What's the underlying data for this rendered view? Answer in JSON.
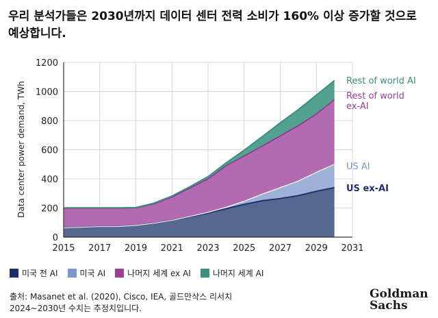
{
  "title": "우리 분석가들은 2030년까지 데이터 센터 전력 소비가 160% 이상 증가할 것으로 예상합니다.",
  "legend": [
    {
      "label": "미국 전 AI",
      "color": "#1f2f6b"
    },
    {
      "label": "미국 AI",
      "color": "#7b97cb"
    },
    {
      "label": "나머지 세계 ex AI",
      "color": "#9c3e94"
    },
    {
      "label": "나머지 세계 AI",
      "color": "#3f8f80"
    }
  ],
  "source_line1": "출처: Masanet et al. (2020), Cisco, IEA, 골드만삭스 리서치",
  "source_line2": "2024~2030년 수치는 추정치입니다.",
  "logo": {
    "line1": "Goldman",
    "line2": "Sachs"
  },
  "chart_data": {
    "type": "area",
    "stacked": true,
    "ylabel": "Data center power demand, TWh",
    "xlabel": "",
    "ylim": [
      0,
      1200
    ],
    "xlim": [
      2015,
      2031
    ],
    "xticks": [
      2015,
      2017,
      2019,
      2021,
      2023,
      2025,
      2027,
      2029,
      2031
    ],
    "yticks": [
      0,
      200,
      400,
      600,
      800,
      1000,
      1200
    ],
    "x": [
      2015,
      2016,
      2017,
      2018,
      2019,
      2020,
      2021,
      2022,
      2023,
      2024,
      2025,
      2026,
      2027,
      2028,
      2029,
      2030
    ],
    "series": [
      {
        "name": "US ex-AI",
        "color": "#56688f",
        "values": [
          62,
          68,
          72,
          72,
          80,
          95,
          115,
          140,
          165,
          195,
          225,
          250,
          265,
          285,
          315,
          340
        ]
      },
      {
        "name": "US AI",
        "color": "#9fb0d6",
        "values": [
          0,
          0,
          0,
          0,
          0,
          0,
          0,
          2,
          5,
          10,
          22,
          45,
          75,
          100,
          130,
          160
        ]
      },
      {
        "name": "Rest of world ex-AI",
        "color": "#b26ab0",
        "values": [
          136,
          130,
          126,
          126,
          120,
          133,
          160,
          195,
          230,
          285,
          310,
          330,
          355,
          380,
          400,
          445
        ]
      },
      {
        "name": "Rest of world AI",
        "color": "#53a291",
        "values": [
          3,
          3,
          3,
          3,
          3,
          5,
          7,
          10,
          15,
          20,
          40,
          65,
          90,
          110,
          130,
          130
        ]
      }
    ],
    "annotations": [
      {
        "text": "Rest of world AI",
        "color": "#3a8f7e"
      },
      {
        "text": "Rest of world ex-AI",
        "color": "#9c3e94"
      },
      {
        "text": "US AI",
        "color": "#7b97cb"
      },
      {
        "text": "US ex-AI",
        "color": "#1f2f6b"
      }
    ]
  }
}
